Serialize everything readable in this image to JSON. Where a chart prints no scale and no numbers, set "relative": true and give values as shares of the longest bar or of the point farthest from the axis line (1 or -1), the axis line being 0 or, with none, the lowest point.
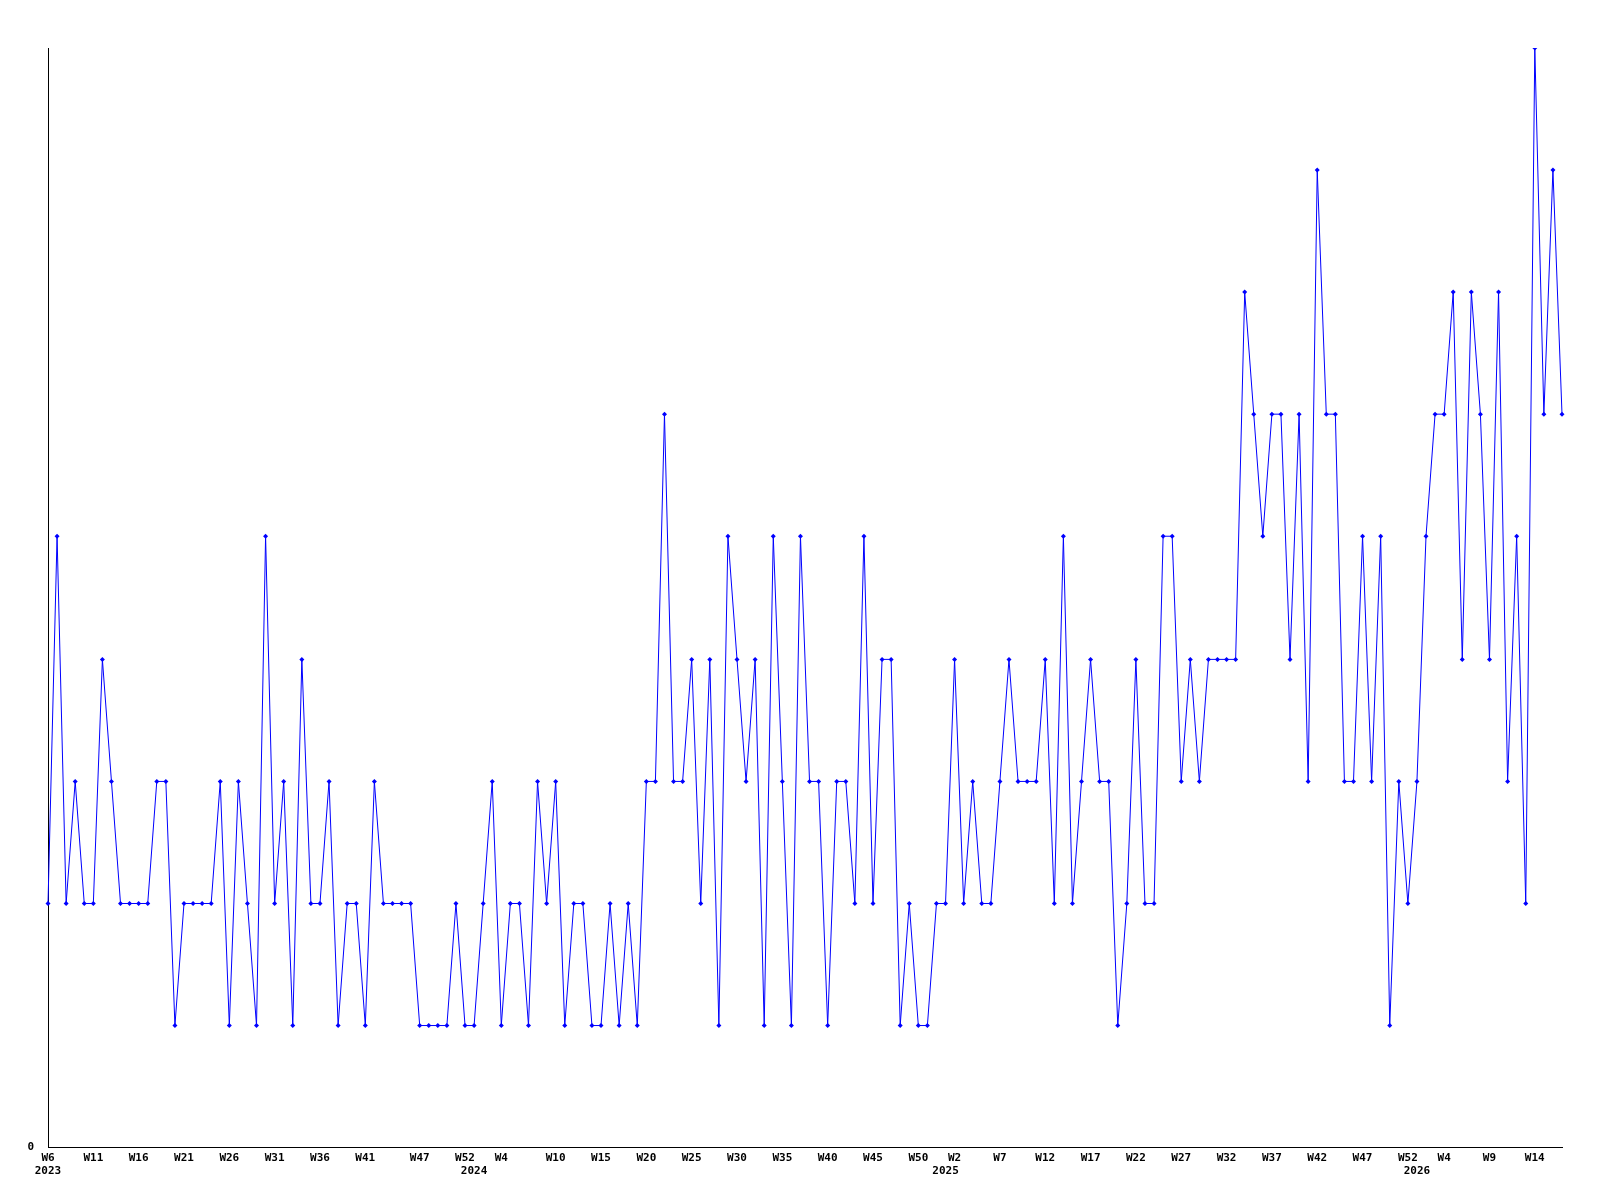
{
  "chart_data": {
    "type": "line",
    "relative": true,
    "annotations": [
      "0"
    ],
    "marker": "diamond",
    "line_style": "solid",
    "grid": false,
    "legend": false,
    "categories": [
      "W6\n2023",
      null,
      null,
      null,
      null,
      "W11",
      null,
      null,
      null,
      null,
      "W16",
      null,
      null,
      null,
      null,
      "W21",
      null,
      null,
      null,
      null,
      "W26",
      null,
      null,
      null,
      null,
      "W31",
      null,
      null,
      null,
      null,
      "W36",
      null,
      null,
      null,
      null,
      "W41",
      null,
      null,
      null,
      null,
      null,
      "W47",
      null,
      null,
      null,
      null,
      "W52",
      "\n2024",
      null,
      null,
      "W4",
      null,
      null,
      null,
      null,
      null,
      "W10",
      null,
      null,
      null,
      null,
      "W15",
      null,
      null,
      null,
      null,
      "W20",
      null,
      null,
      null,
      null,
      "W25",
      null,
      null,
      null,
      null,
      "W30",
      null,
      null,
      null,
      null,
      "W35",
      null,
      null,
      null,
      null,
      "W40",
      null,
      null,
      null,
      null,
      "W45",
      null,
      null,
      null,
      null,
      "W50",
      null,
      null,
      "\n2025",
      "W2",
      null,
      null,
      null,
      null,
      "W7",
      null,
      null,
      null,
      null,
      "W12",
      null,
      null,
      null,
      null,
      "W17",
      null,
      null,
      null,
      null,
      "W22",
      null,
      null,
      null,
      null,
      "W27",
      null,
      null,
      null,
      null,
      "W32",
      null,
      null,
      null,
      null,
      "W37",
      null,
      null,
      null,
      null,
      "W42",
      null,
      null,
      null,
      null,
      "W47",
      null,
      null,
      null,
      null,
      "W52",
      "\n2026",
      null,
      null,
      "W4",
      null,
      null,
      null,
      null,
      "W9",
      null,
      null,
      null,
      null,
      "W14",
      null,
      null,
      null
    ],
    "series": [
      {
        "color": "#0000ff",
        "values": [
          0.222,
          0.556,
          0.222,
          0.333,
          0.222,
          0.222,
          0.444,
          0.333,
          0.222,
          0.222,
          0.222,
          0.222,
          0.333,
          0.333,
          0.111,
          0.222,
          0.222,
          0.222,
          0.222,
          0.333,
          0.111,
          0.333,
          0.222,
          0.111,
          0.556,
          0.222,
          0.333,
          0.111,
          0.444,
          0.222,
          0.222,
          0.333,
          0.111,
          0.222,
          0.222,
          0.111,
          0.333,
          0.222,
          0.222,
          0.222,
          0.222,
          0.111,
          0.111,
          0.111,
          0.111,
          0.222,
          0.111,
          0.111,
          0.222,
          0.333,
          0.111,
          0.222,
          0.222,
          0.111,
          0.333,
          0.222,
          0.333,
          0.111,
          0.222,
          0.222,
          0.111,
          0.111,
          0.222,
          0.111,
          0.222,
          0.111,
          0.333,
          0.333,
          0.667,
          0.333,
          0.333,
          0.444,
          0.222,
          0.444,
          0.111,
          0.556,
          0.444,
          0.333,
          0.444,
          0.111,
          0.556,
          0.333,
          0.111,
          0.556,
          0.333,
          0.333,
          0.111,
          0.333,
          0.333,
          0.222,
          0.556,
          0.222,
          0.444,
          0.444,
          0.111,
          0.222,
          0.111,
          0.111,
          0.222,
          0.222,
          0.444,
          0.222,
          0.333,
          0.222,
          0.222,
          0.333,
          0.444,
          0.333,
          0.333,
          0.333,
          0.444,
          0.222,
          0.556,
          0.222,
          0.333,
          0.444,
          0.333,
          0.333,
          0.111,
          0.222,
          0.444,
          0.222,
          0.222,
          0.556,
          0.556,
          0.333,
          0.444,
          0.333,
          0.444,
          0.444,
          0.444,
          0.444,
          0.778,
          0.667,
          0.556,
          0.667,
          0.667,
          0.444,
          0.667,
          0.333,
          0.889,
          0.667,
          0.667,
          0.333,
          0.333,
          0.556,
          0.333,
          0.556,
          0.111,
          0.333,
          0.222,
          0.333,
          0.556,
          0.667,
          0.667,
          0.778,
          0.444,
          0.778,
          0.667,
          0.444,
          0.778,
          0.333,
          0.556,
          0.222,
          1,
          0.667,
          0.889,
          0.667
        ]
      }
    ]
  }
}
